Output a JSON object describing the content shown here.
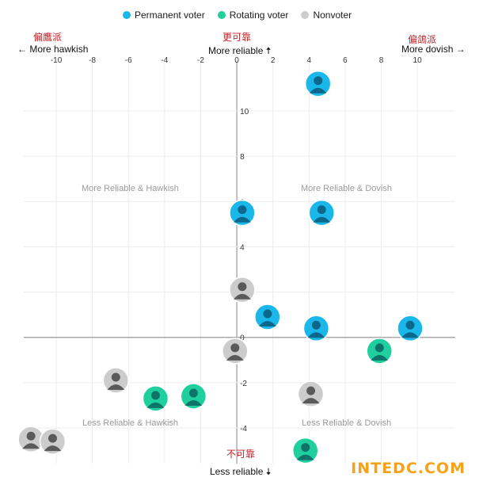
{
  "legend": [
    {
      "label": "Permanent voter",
      "color": "#1ab7ea"
    },
    {
      "label": "Rotating voter",
      "color": "#1fcf9e"
    },
    {
      "label": "Nonvoter",
      "color": "#cccccc"
    }
  ],
  "axis_labels": {
    "left_cn": "偏鷹派",
    "left": "← More hawkish",
    "top_cn": "更可靠",
    "top": "More reliable 🠅",
    "right_cn": "偏鴿派",
    "right": "More dovish →",
    "bottom_cn": "不可靠",
    "bottom": "Less reliable 🠇"
  },
  "quadrants": {
    "top_left": "More Reliable & Hawkish",
    "top_right": "More Reliable & Dovish",
    "bottom_left": "Less Reliable & Hawkish",
    "bottom_right": "Less Reliable & Dovish"
  },
  "watermark": "INTEDC.COM",
  "chart_data": {
    "type": "scatter",
    "title": "",
    "xlabel": "More hawkish ← → More dovish",
    "ylabel": "More reliable ↑ ↓ Less reliable",
    "xlim": [
      -11.8,
      12.1
    ],
    "ylim": [
      -5.4,
      12.1
    ],
    "x_ticks": [
      -10,
      -8,
      -6,
      -4,
      -2,
      0,
      2,
      4,
      6,
      8,
      10
    ],
    "y_ticks": [
      10,
      8,
      6,
      4,
      2,
      0,
      -2,
      -4
    ],
    "grid": true,
    "legend_position": "top",
    "colors": {
      "Permanent voter": "#1ab7ea",
      "Rotating voter": "#1fcf9e",
      "Nonvoter": "#cccccc"
    },
    "points": [
      {
        "x": 4.5,
        "y": 11.2,
        "category": "Permanent voter"
      },
      {
        "x": 0.3,
        "y": 5.5,
        "category": "Permanent voter"
      },
      {
        "x": 4.7,
        "y": 5.5,
        "category": "Permanent voter"
      },
      {
        "x": 0.3,
        "y": 2.1,
        "category": "Nonvoter"
      },
      {
        "x": 1.7,
        "y": 0.9,
        "category": "Permanent voter"
      },
      {
        "x": 4.4,
        "y": 0.4,
        "category": "Permanent voter"
      },
      {
        "x": 9.6,
        "y": 0.4,
        "category": "Permanent voter"
      },
      {
        "x": 7.9,
        "y": -0.6,
        "category": "Rotating voter"
      },
      {
        "x": -0.1,
        "y": -0.6,
        "category": "Nonvoter"
      },
      {
        "x": -6.7,
        "y": -1.9,
        "category": "Nonvoter"
      },
      {
        "x": -4.5,
        "y": -2.7,
        "category": "Rotating voter"
      },
      {
        "x": -2.4,
        "y": -2.6,
        "category": "Rotating voter"
      },
      {
        "x": 4.1,
        "y": -2.5,
        "category": "Nonvoter"
      },
      {
        "x": -11.4,
        "y": -4.5,
        "category": "Nonvoter"
      },
      {
        "x": -10.2,
        "y": -4.6,
        "category": "Nonvoter"
      },
      {
        "x": 3.8,
        "y": -5.0,
        "category": "Rotating voter"
      }
    ]
  }
}
